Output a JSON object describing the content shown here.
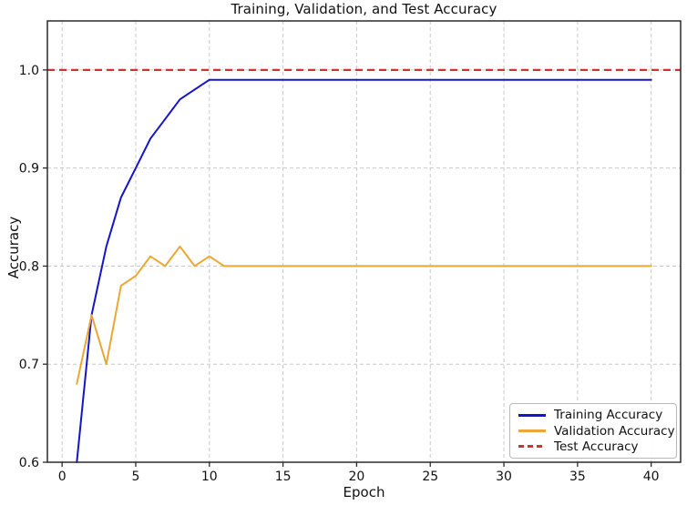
{
  "chart_data": {
    "type": "line",
    "title": "Training, Validation, and Test Accuracy",
    "xlabel": "Epoch",
    "ylabel": "Accuracy",
    "xlim": [
      -1,
      42
    ],
    "ylim": [
      0.6,
      1.05
    ],
    "grid": true,
    "grid_style": "dashed",
    "legend_position": "lower right",
    "axis_color": "#2b2b2b",
    "grid_color": "#c9c9c9",
    "background": "#ffffff",
    "xticks": [
      {
        "value": 0,
        "label": "0"
      },
      {
        "value": 5,
        "label": "5"
      },
      {
        "value": 10,
        "label": "10"
      },
      {
        "value": 15,
        "label": "15"
      },
      {
        "value": 20,
        "label": "20"
      },
      {
        "value": 25,
        "label": "25"
      },
      {
        "value": 30,
        "label": "30"
      },
      {
        "value": 35,
        "label": "35"
      },
      {
        "value": 40,
        "label": "40"
      }
    ],
    "yticks": [
      {
        "value": 0.6,
        "label": "0.6"
      },
      {
        "value": 0.7,
        "label": "0.7"
      },
      {
        "value": 0.8,
        "label": "0.8"
      },
      {
        "value": 0.9,
        "label": "0.9"
      },
      {
        "value": 1.0,
        "label": "1.0"
      }
    ],
    "x": [
      1,
      2,
      3,
      4,
      5,
      6,
      7,
      8,
      9,
      10,
      11,
      12,
      13,
      14,
      15,
      16,
      17,
      18,
      19,
      20,
      21,
      22,
      23,
      24,
      25,
      26,
      27,
      28,
      29,
      30,
      31,
      32,
      33,
      34,
      35,
      36,
      37,
      38,
      39,
      40
    ],
    "series": [
      {
        "name": "Training Accuracy",
        "color": "#1414c8",
        "linestyle": "solid",
        "values": [
          0.6,
          0.75,
          0.82,
          0.87,
          0.9,
          0.93,
          0.95,
          0.97,
          0.98,
          0.99,
          0.99,
          0.99,
          0.99,
          0.99,
          0.99,
          0.99,
          0.99,
          0.99,
          0.99,
          0.99,
          0.99,
          0.99,
          0.99,
          0.99,
          0.99,
          0.99,
          0.99,
          0.99,
          0.99,
          0.99,
          0.99,
          0.99,
          0.99,
          0.99,
          0.99,
          0.99,
          0.99,
          0.99,
          0.99,
          0.99
        ]
      },
      {
        "name": "Validation Accuracy",
        "color": "#eaa832",
        "linestyle": "solid",
        "values": [
          0.68,
          0.75,
          0.7,
          0.78,
          0.79,
          0.81,
          0.8,
          0.82,
          0.8,
          0.81,
          0.8,
          0.8,
          0.8,
          0.8,
          0.8,
          0.8,
          0.8,
          0.8,
          0.8,
          0.8,
          0.8,
          0.8,
          0.8,
          0.8,
          0.8,
          0.8,
          0.8,
          0.8,
          0.8,
          0.8,
          0.8,
          0.8,
          0.8,
          0.8,
          0.8,
          0.8,
          0.8,
          0.8,
          0.8,
          0.8
        ]
      },
      {
        "name": "Test Accuracy",
        "color": "#cc3433",
        "linestyle": "dashed",
        "hline": 1.0
      }
    ]
  }
}
